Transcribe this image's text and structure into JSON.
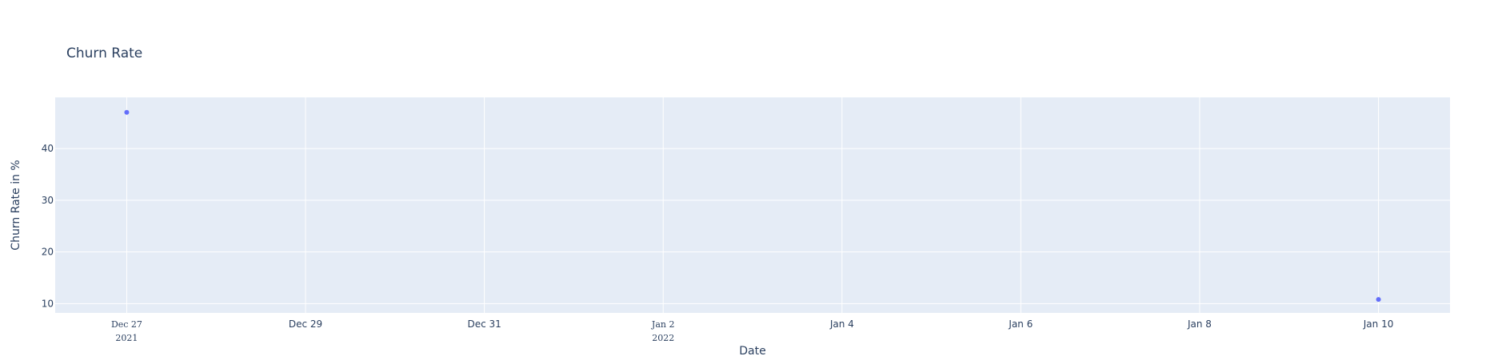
{
  "chart_data": {
    "type": "scatter",
    "title": "Churn Rate",
    "xlabel": "Date",
    "ylabel": "Churn Rate in %",
    "x_type": "date",
    "xlim": [
      "2021-12-26T04:48:00",
      "2022-01-10T19:12:00"
    ],
    "ylim": [
      8.2,
      49.9
    ],
    "x_ticks": [
      {
        "value": "2021-12-27",
        "label": "Dec 27",
        "sublabel": "2021",
        "serif": true
      },
      {
        "value": "2021-12-29",
        "label": "Dec 29",
        "sublabel": "",
        "serif": false
      },
      {
        "value": "2021-12-31",
        "label": "Dec 31",
        "sublabel": "",
        "serif": false
      },
      {
        "value": "2022-01-02",
        "label": "Jan 2",
        "sublabel": "2022",
        "serif": true
      },
      {
        "value": "2022-01-04",
        "label": "Jan 4",
        "sublabel": "",
        "serif": false
      },
      {
        "value": "2022-01-06",
        "label": "Jan 6",
        "sublabel": "",
        "serif": false
      },
      {
        "value": "2022-01-08",
        "label": "Jan 8",
        "sublabel": "",
        "serif": false
      },
      {
        "value": "2022-01-10",
        "label": "Jan 10",
        "sublabel": "",
        "serif": false
      }
    ],
    "y_ticks": [
      10,
      20,
      30,
      40
    ],
    "grid": true,
    "legend": "none",
    "series": [
      {
        "x": [
          "2021-12-27",
          "2022-01-10"
        ],
        "y": [
          47,
          10.8
        ]
      }
    ],
    "colors": {
      "plot_bg": "#e5ecf6",
      "grid": "#ffffff",
      "marker": "#636efa",
      "text": "#2a3f5f"
    }
  }
}
